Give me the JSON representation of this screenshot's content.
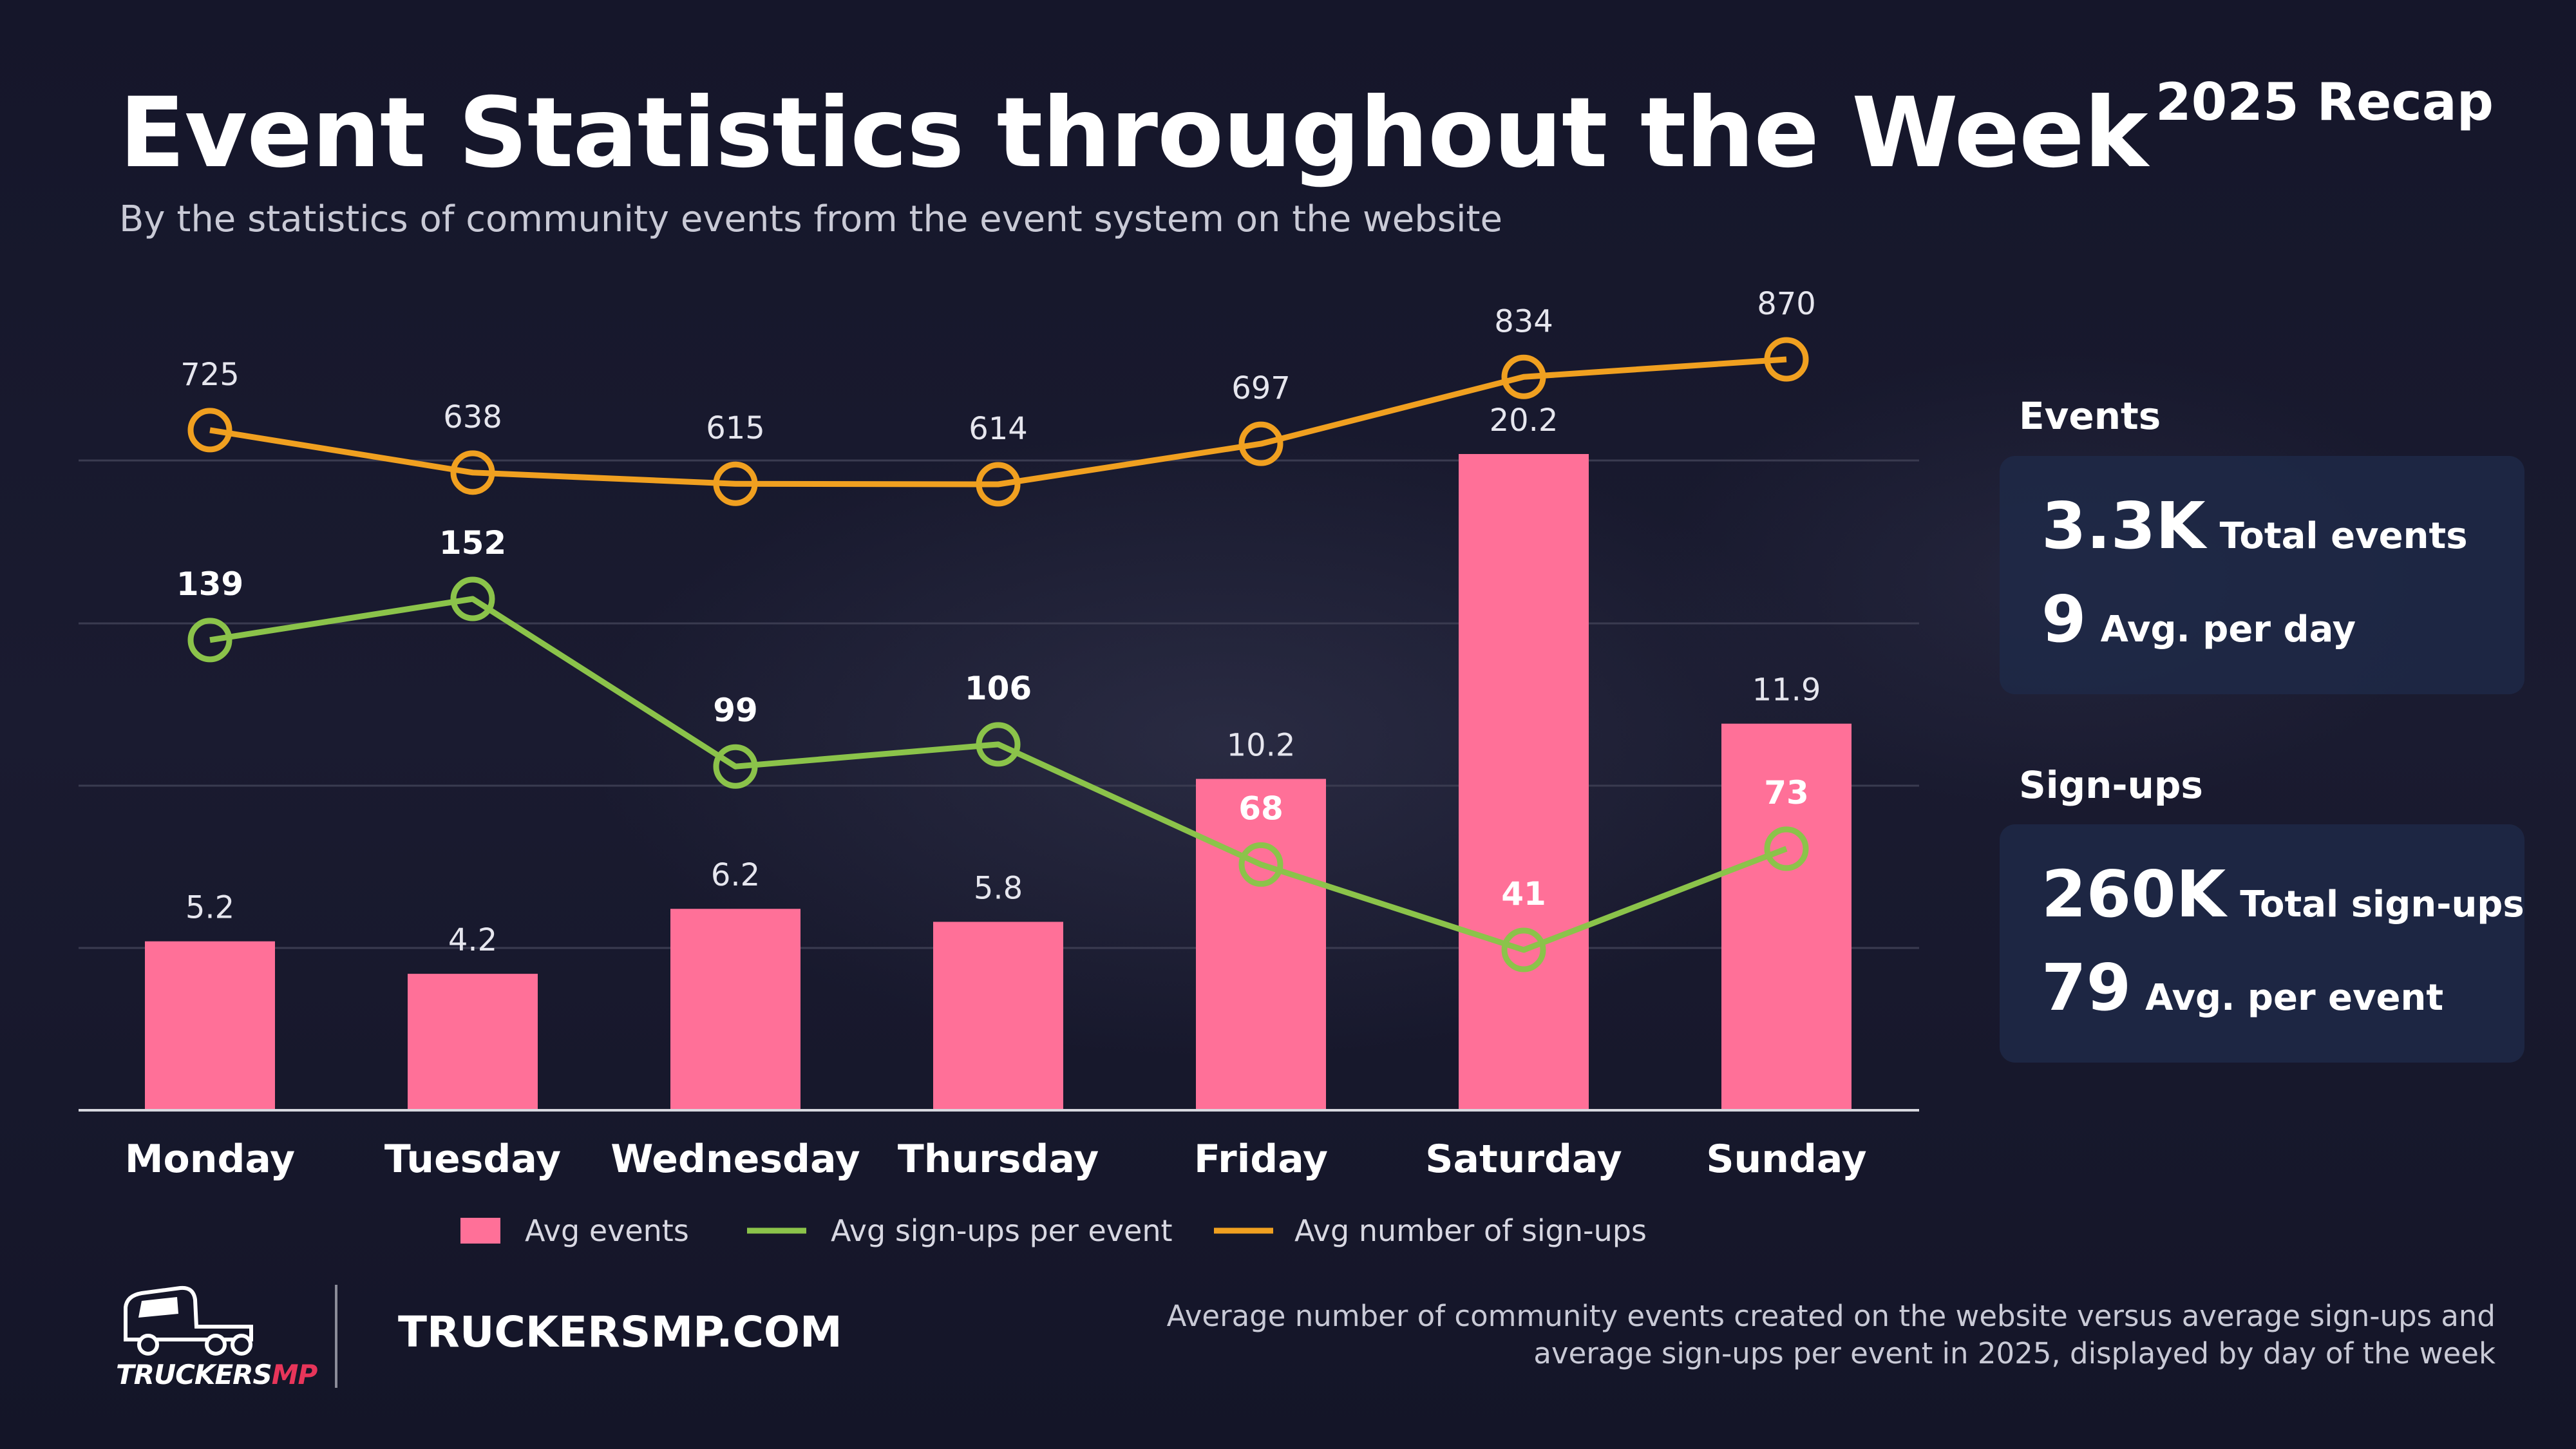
{
  "header": {
    "title": "Event Statistics throughout the Week",
    "subtitle": "By the statistics of community events from the event system on the website",
    "recap": "2025 Recap"
  },
  "sidebar": {
    "events_heading": "Events",
    "events_total_value": "3.3K",
    "events_total_label": "Total events",
    "events_avg_value": "9",
    "events_avg_label": "Avg. per day",
    "signups_heading": "Sign-ups",
    "signups_total_value": "260K",
    "signups_total_label": "Total sign-ups",
    "signups_avg_value": "79",
    "signups_avg_label": "Avg. per event"
  },
  "footer": {
    "logo_text_main": "TRUCKERS",
    "logo_text_accent": "MP",
    "site": "TRUCKERSMP.COM",
    "note": "Average number of community events created on the website versus average sign-ups and average sign-ups per event in 2025, displayed by day of the week"
  },
  "colors": {
    "bar": "#ff7098",
    "green": "#8bc34a",
    "orange": "#f0a020",
    "grid": "#3a3b50"
  },
  "chart_data": {
    "type": "bar",
    "title": "Event Statistics throughout the Week",
    "categories": [
      "Monday",
      "Tuesday",
      "Wednesday",
      "Thursday",
      "Friday",
      "Saturday",
      "Sunday"
    ],
    "series": [
      {
        "name": "Avg events",
        "type": "bar",
        "axis": "bars",
        "values": [
          5.2,
          4.2,
          6.2,
          5.8,
          10.2,
          20.2,
          11.9
        ],
        "labels": [
          "5.2",
          "4.2",
          "6.2",
          "5.8",
          "10.2",
          "20.2",
          "11.9"
        ]
      },
      {
        "name": "Avg sign-ups per event",
        "type": "line",
        "axis": "green",
        "values": [
          139,
          152,
          99,
          106,
          68,
          41,
          73
        ],
        "labels": [
          "139",
          "152",
          "99",
          "106",
          "68",
          "41",
          "73"
        ]
      },
      {
        "name": "Avg number of sign-ups",
        "type": "line",
        "axis": "orange",
        "values": [
          725,
          638,
          615,
          614,
          697,
          834,
          870
        ],
        "labels": [
          "725",
          "638",
          "615",
          "614",
          "697",
          "834",
          "870"
        ]
      }
    ],
    "scales": {
      "bars": [
        0,
        20.2
      ],
      "green": [
        0,
        152
      ],
      "orange": [
        614,
        870
      ]
    },
    "xlabel": "",
    "ylabel": "",
    "grid": true,
    "legend": "bottom"
  }
}
